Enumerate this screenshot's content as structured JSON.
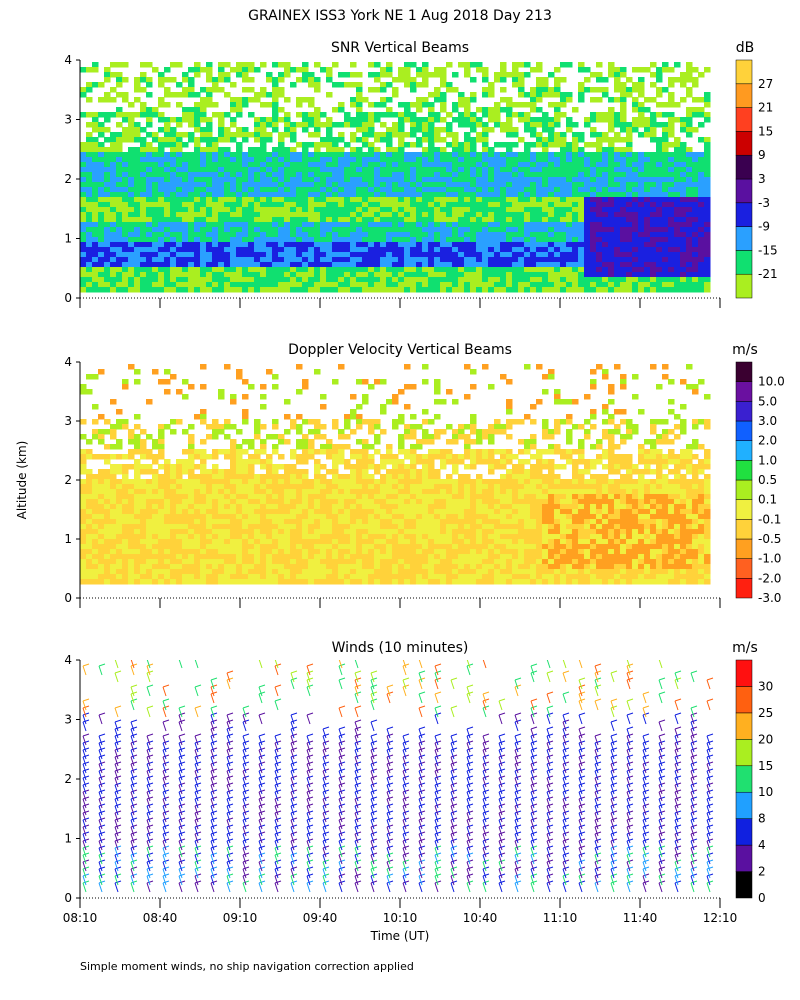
{
  "page_title": "GRAINEX ISS3 York NE   1 Aug 2018 Day 213",
  "y_axis_label": "Altitude (km)",
  "footnote": "Simple moment winds, no ship navigation correction applied",
  "chart_data": [
    {
      "type": "heatmap",
      "title": "SNR Vertical Beams",
      "unit_label": "dB",
      "x_ticks": [
        "08:10",
        "08:40",
        "09:10",
        "09:40",
        "10:10",
        "10:40",
        "11:10",
        "11:40",
        "12:10"
      ],
      "y_ticks": [
        "0",
        "1",
        "2",
        "3",
        "4"
      ],
      "ylim": [
        0,
        4
      ],
      "colorbar_labels": [
        "27",
        "21",
        "15",
        "9",
        "3",
        "-3",
        "-9",
        "-15",
        "-21"
      ],
      "colorbar_colors": [
        "#ffd23a",
        "#ff9a20",
        "#ff4020",
        "#cc0000",
        "#3a0050",
        "#5a10a0",
        "#1a20e0",
        "#2aa0ff",
        "#10e070",
        "#aaee20"
      ]
    },
    {
      "type": "heatmap",
      "title": "Doppler Velocity Vertical Beams",
      "unit_label": "m/s",
      "x_ticks": [
        "08:10",
        "08:40",
        "09:10",
        "09:40",
        "10:10",
        "10:40",
        "11:10",
        "11:40",
        "12:10"
      ],
      "y_ticks": [
        "0",
        "1",
        "2",
        "3",
        "4"
      ],
      "ylim": [
        0,
        4
      ],
      "colorbar_labels": [
        "10.0",
        "5.0",
        "3.0",
        "2.0",
        "1.0",
        "0.5",
        "0.1",
        "-0.1",
        "-0.5",
        "-1.0",
        "-2.0",
        "-3.0"
      ],
      "colorbar_colors": [
        "#3a0030",
        "#6a10a0",
        "#3a20d0",
        "#1060ff",
        "#20b0ff",
        "#20e040",
        "#aaee20",
        "#f0f040",
        "#ffd23a",
        "#ffa020",
        "#ff6020",
        "#ff2010"
      ]
    },
    {
      "type": "scatter",
      "title": "Winds (10 minutes)",
      "unit_label": "m/s",
      "xlabel": "Time (UT)",
      "x_ticks": [
        "08:10",
        "08:40",
        "09:10",
        "09:40",
        "10:10",
        "10:40",
        "11:10",
        "11:40",
        "12:10"
      ],
      "y_ticks": [
        "0",
        "1",
        "2",
        "3",
        "4"
      ],
      "ylim": [
        0,
        4
      ],
      "colorbar_labels": [
        "30",
        "25",
        "20",
        "15",
        "10",
        "8",
        "4",
        "2",
        "0"
      ],
      "colorbar_colors": [
        "#ff1010",
        "#ff6010",
        "#ffb020",
        "#aaee20",
        "#20e070",
        "#20a0ff",
        "#1020e0",
        "#5a10a0",
        "#000000"
      ]
    }
  ]
}
